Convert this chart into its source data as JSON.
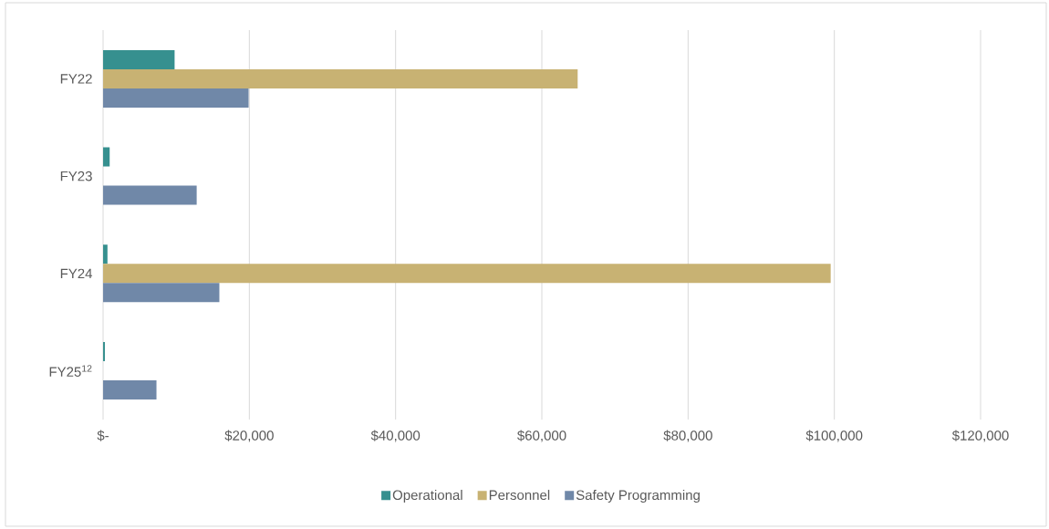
{
  "chart_data": {
    "type": "bar",
    "orientation": "horizontal",
    "categories": [
      "FY22",
      "FY23",
      "FY24",
      "FY25$^{12}$"
    ],
    "series": [
      {
        "name": "Operational",
        "color": "#36908f",
        "values": [
          9800,
          900,
          600,
          250
        ]
      },
      {
        "name": "Personnel",
        "color": "#c8b273",
        "values": [
          64900,
          null,
          99500,
          null
        ]
      },
      {
        "name": "Safety Programming",
        "color": "#7088a8",
        "values": [
          19900,
          12800,
          15900,
          7300
        ]
      }
    ],
    "xlim": [
      0,
      120000
    ],
    "xticks": [
      {
        "value": 0,
        "label": "$-"
      },
      {
        "value": 20000,
        "label": "$20,000"
      },
      {
        "value": 40000,
        "label": "$40,000"
      },
      {
        "value": 60000,
        "label": "$60,000"
      },
      {
        "value": 80000,
        "label": "$80,000"
      },
      {
        "value": 100000,
        "label": "$100,000"
      },
      {
        "value": 120000,
        "label": "$120,000"
      }
    ],
    "grid": "x",
    "legend": "bottom"
  }
}
